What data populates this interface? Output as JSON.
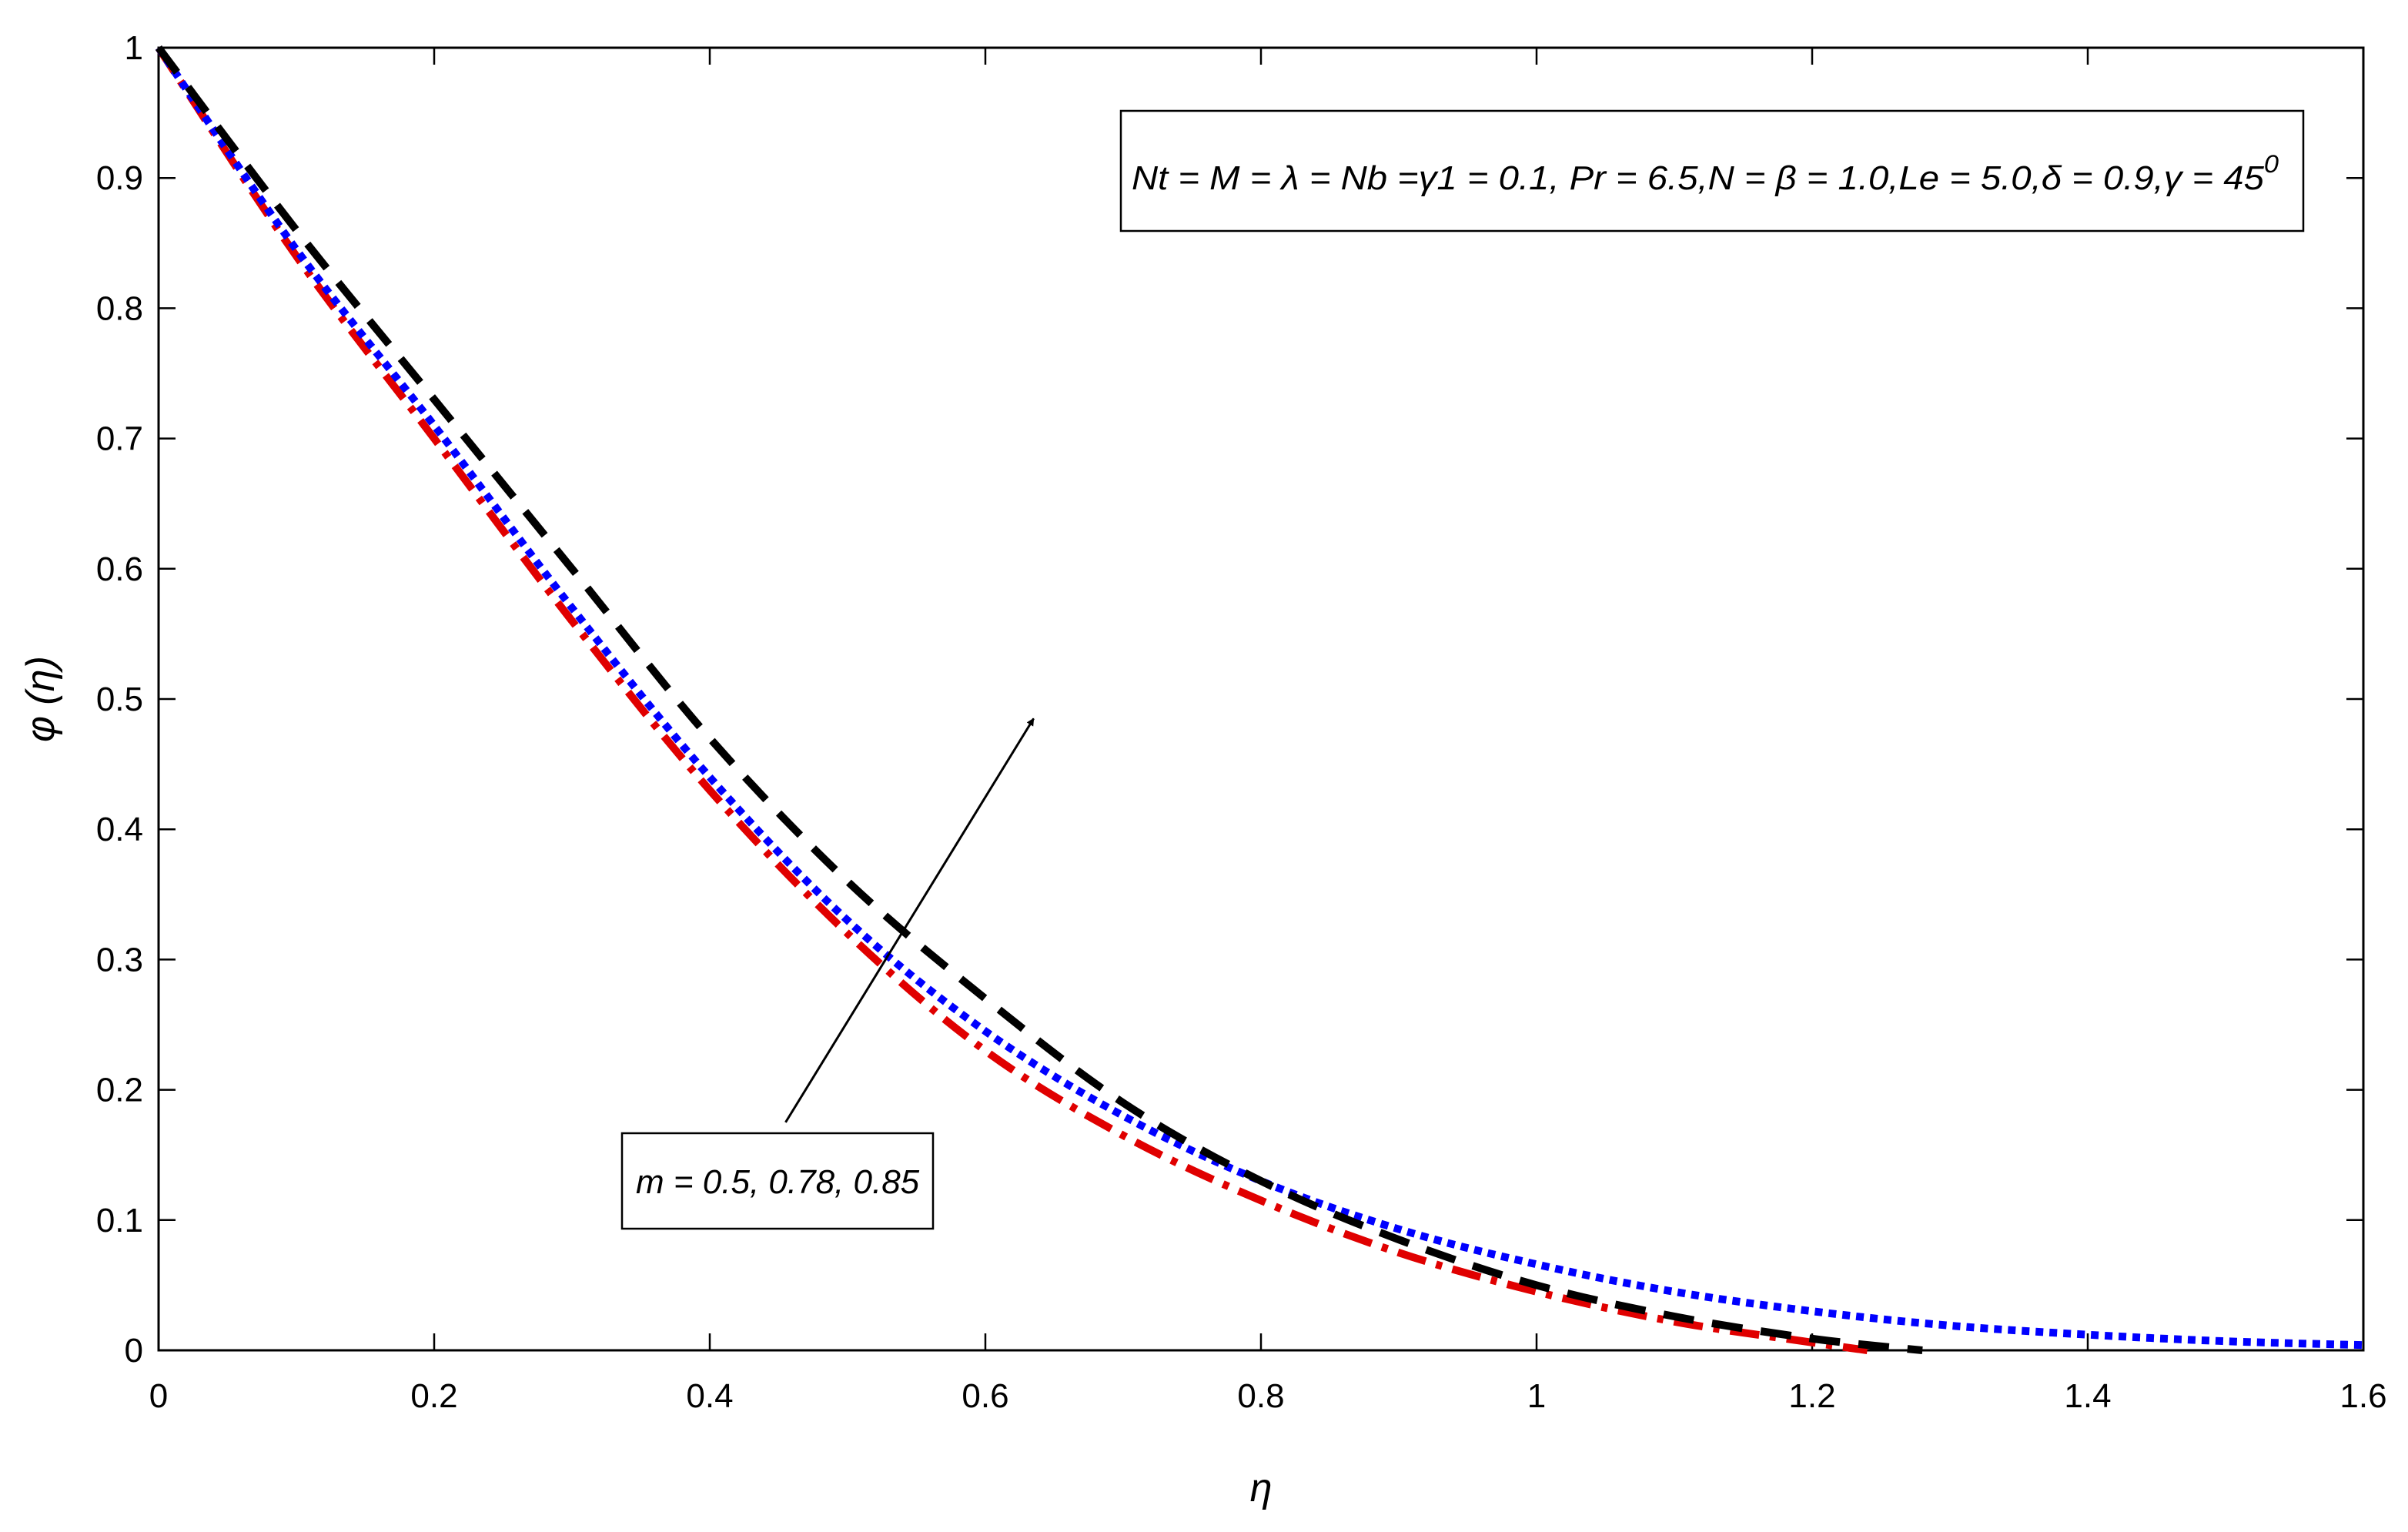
{
  "chart_data": {
    "type": "line",
    "title": "",
    "xlabel": "η",
    "ylabel": "φ (η)",
    "xlim": [
      0,
      1.6
    ],
    "ylim": [
      0,
      1
    ],
    "xticks": [
      0,
      0.2,
      0.4,
      0.6,
      0.8,
      1,
      1.2,
      1.4,
      1.6
    ],
    "xtick_labels": [
      "0",
      "0.2",
      "0.4",
      "0.6",
      "0.8",
      "1",
      "1.2",
      "1.4",
      "1.6"
    ],
    "yticks": [
      0,
      0.1,
      0.2,
      0.3,
      0.4,
      0.5,
      0.6,
      0.7,
      0.8,
      0.9,
      1
    ],
    "ytick_labels": [
      "0",
      "0.1",
      "0.2",
      "0.3",
      "0.4",
      "0.5",
      "0.6",
      "0.7",
      "0.8",
      "0.9",
      "1"
    ],
    "grid": false,
    "series": [
      {
        "color": "#e00000",
        "style": "dash-dot",
        "x": [
          0,
          0.1,
          0.2,
          0.3,
          0.4,
          0.5,
          0.6,
          0.7,
          0.8,
          0.9,
          1.0,
          1.1,
          1.2,
          1.24
        ],
        "y": [
          1.0,
          0.84,
          0.7,
          0.56,
          0.43,
          0.32,
          0.23,
          0.165,
          0.115,
          0.075,
          0.045,
          0.022,
          0.006,
          0.0
        ]
      },
      {
        "color": "#0000ff",
        "style": "dotted",
        "x": [
          0,
          0.1,
          0.2,
          0.3,
          0.4,
          0.5,
          0.6,
          0.7,
          0.8,
          0.9,
          1.0,
          1.1,
          1.2,
          1.3,
          1.4,
          1.5,
          1.6
        ],
        "y": [
          1.0,
          0.845,
          0.71,
          0.57,
          0.44,
          0.33,
          0.245,
          0.18,
          0.13,
          0.093,
          0.066,
          0.045,
          0.03,
          0.019,
          0.012,
          0.007,
          0.004
        ]
      },
      {
        "color": "#000000",
        "style": "dashed",
        "x": [
          0,
          0.1,
          0.2,
          0.3,
          0.4,
          0.5,
          0.6,
          0.7,
          0.8,
          0.9,
          1.0,
          1.1,
          1.2,
          1.28
        ],
        "y": [
          1.0,
          0.86,
          0.73,
          0.6,
          0.47,
          0.36,
          0.27,
          0.19,
          0.13,
          0.085,
          0.05,
          0.026,
          0.009,
          0.0
        ]
      }
    ],
    "annotations": {
      "params_box": "Nt = M = λ = Nb =γ1 = 0.1, Pr = 6.5,N = β = 1.0,Le = 5.0,δ = 0.9,γ = 45",
      "params_superscript": "0",
      "m_box": "m = 0.5, 0.78, 0.85",
      "arrow_from": [
        0.455,
        0.175
      ],
      "arrow_to": [
        0.635,
        0.485
      ]
    }
  }
}
